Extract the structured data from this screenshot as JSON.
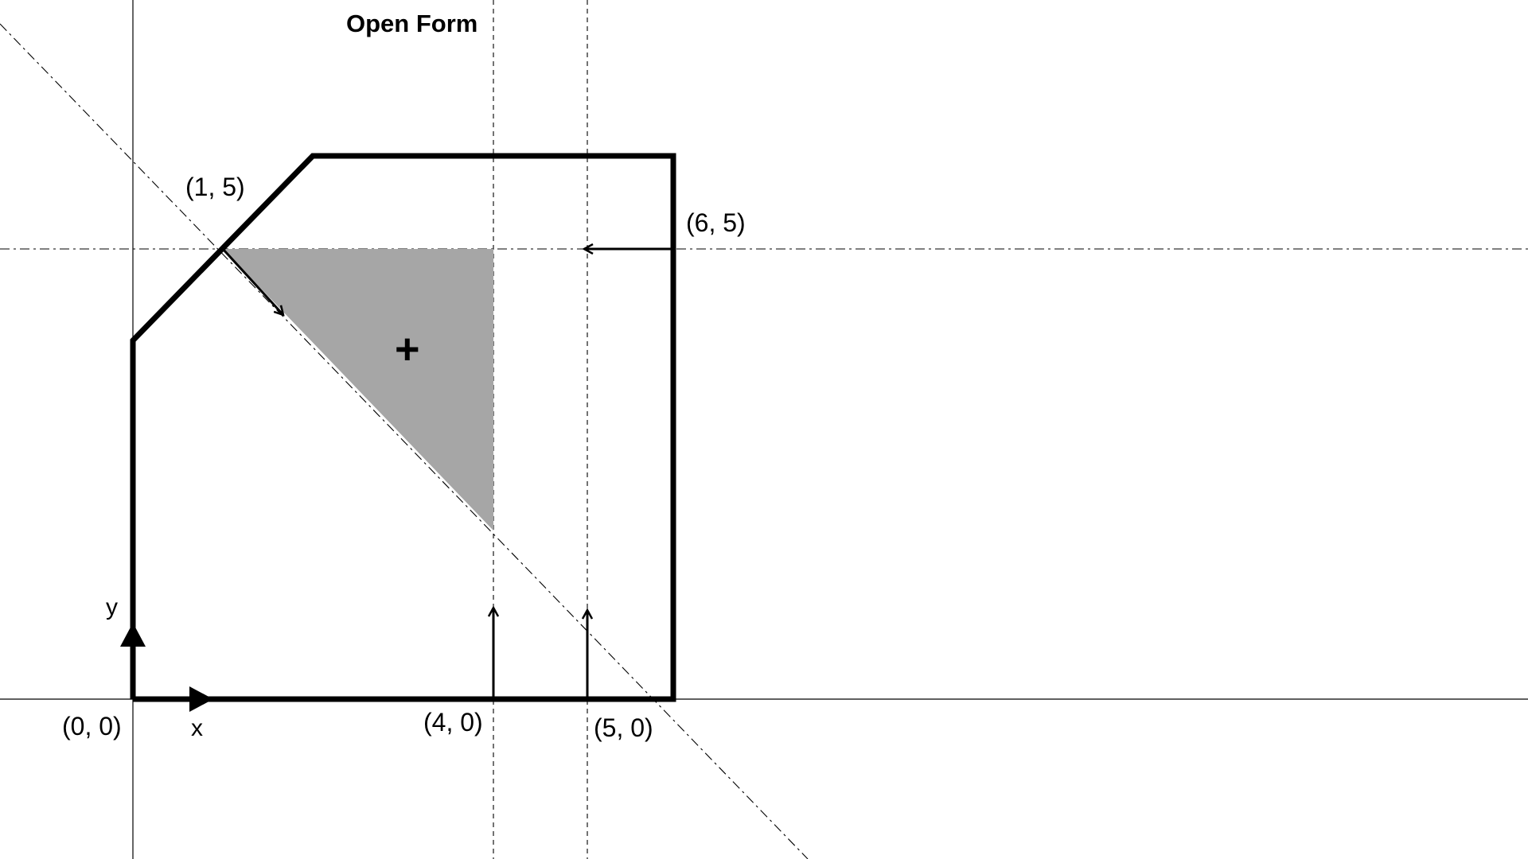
{
  "title": "Open Form",
  "labels": {
    "p15": "(1, 5)",
    "p65": "(6, 5)",
    "p00": "(0, 0)",
    "p40": "(4, 0)",
    "p50": "(5, 0)",
    "axis_x": "x",
    "axis_y": "y",
    "plus": "+"
  },
  "colors": {
    "stroke": "#000000",
    "shade": "#a6a6a6",
    "background": "#ffffff"
  }
}
